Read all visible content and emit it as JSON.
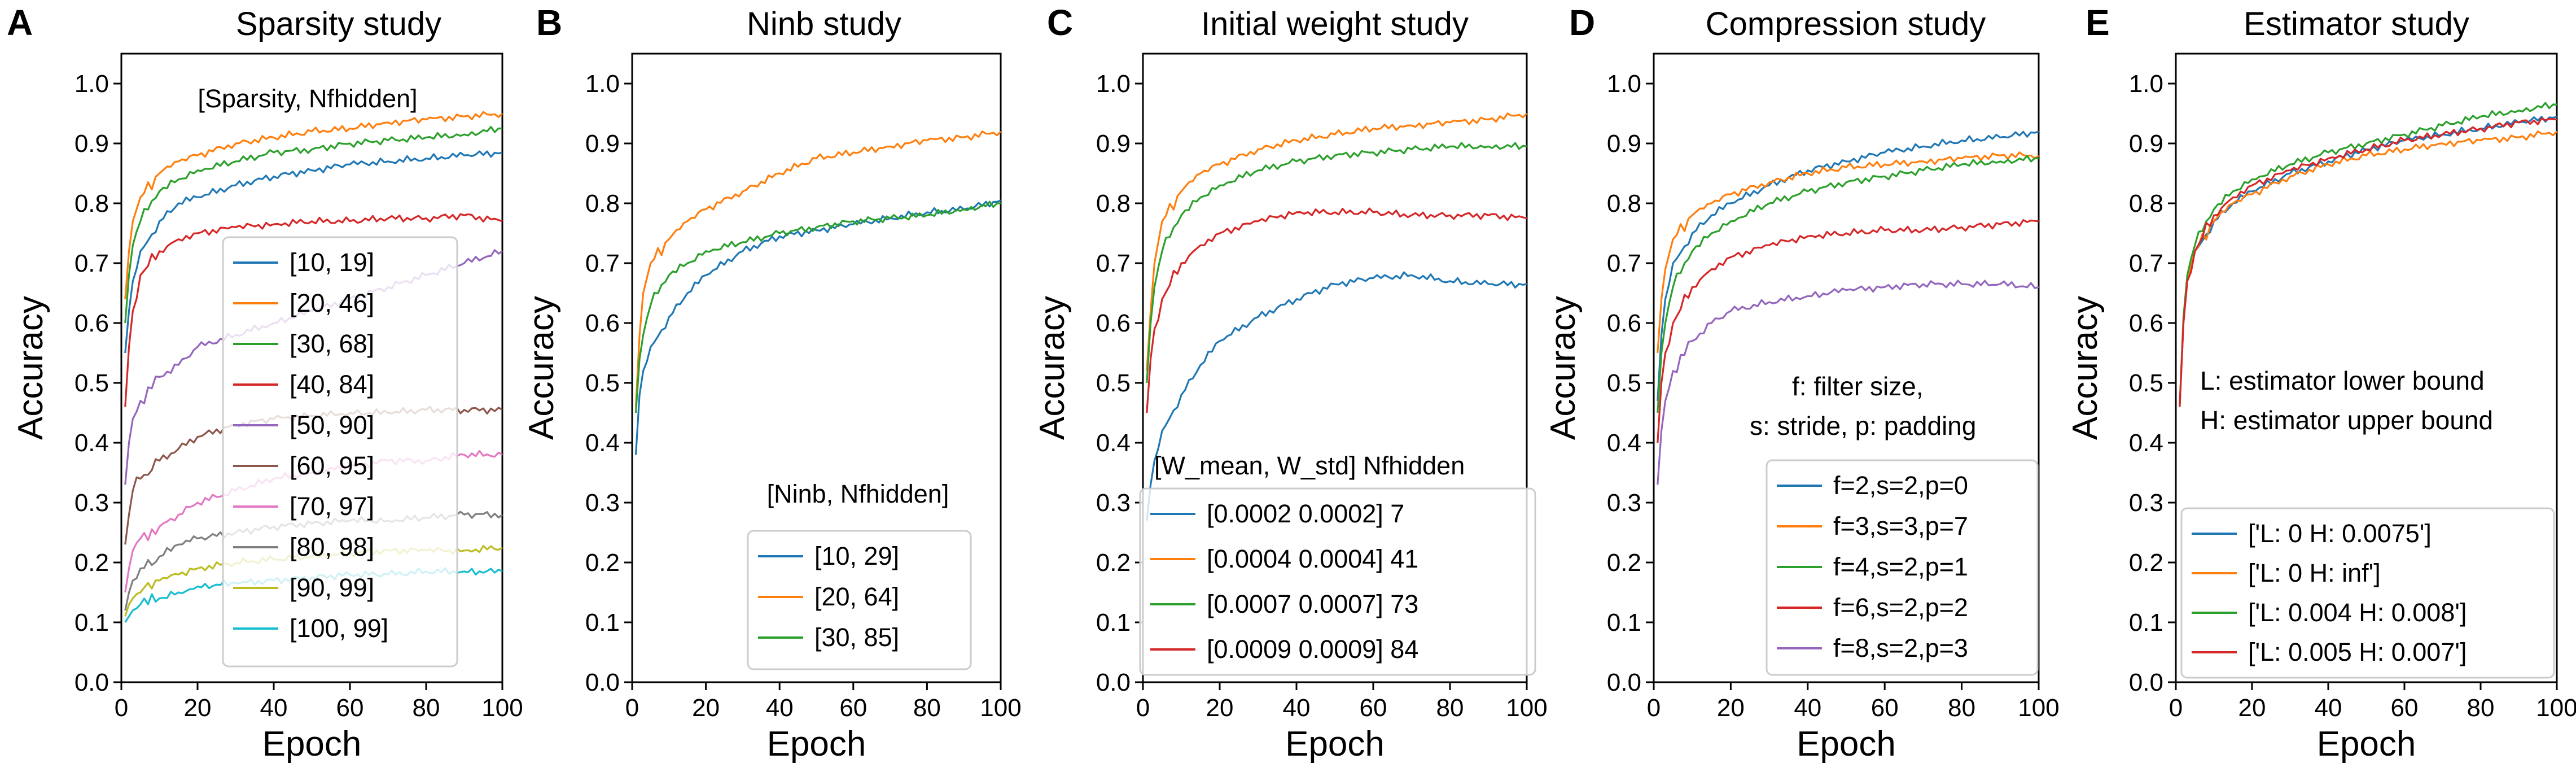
{
  "figure": {
    "palette": [
      "#1f77b4",
      "#ff7f0e",
      "#2ca02c",
      "#d62728",
      "#9467bd",
      "#8c564b",
      "#e377c2",
      "#7f7f7f",
      "#bcbd22",
      "#17becf"
    ]
  },
  "chart_data": [
    {
      "type": "line",
      "letter": "A",
      "title": "Sparsity study",
      "xlabel": "Epoch",
      "ylabel": "Accuracy",
      "xlim": [
        0,
        100
      ],
      "ylim": [
        0,
        1.05
      ],
      "xticks": [
        0,
        20,
        40,
        60,
        80,
        100
      ],
      "yticks": [
        0.0,
        0.1,
        0.2,
        0.3,
        0.4,
        0.5,
        0.6,
        0.7,
        0.8,
        0.9,
        1.0
      ],
      "legend_title": "[Sparsity, Nfhidden]",
      "legend_position": "center-right",
      "x": [
        1,
        2,
        3,
        5,
        10,
        15,
        20,
        30,
        40,
        50,
        60,
        70,
        80,
        90,
        100
      ],
      "series": [
        {
          "name": "[10, 19]",
          "color": "#1f77b4",
          "values": [
            0.55,
            0.62,
            0.67,
            0.72,
            0.77,
            0.8,
            0.81,
            0.83,
            0.845,
            0.855,
            0.865,
            0.87,
            0.875,
            0.88,
            0.885
          ]
        },
        {
          "name": "[20, 46]",
          "color": "#ff7f0e",
          "values": [
            0.64,
            0.72,
            0.77,
            0.81,
            0.85,
            0.87,
            0.88,
            0.9,
            0.91,
            0.92,
            0.925,
            0.935,
            0.94,
            0.945,
            0.95
          ]
        },
        {
          "name": "[30, 68]",
          "color": "#2ca02c",
          "values": [
            0.6,
            0.68,
            0.73,
            0.77,
            0.82,
            0.84,
            0.855,
            0.87,
            0.885,
            0.89,
            0.9,
            0.905,
            0.91,
            0.915,
            0.925
          ]
        },
        {
          "name": "[40, 84]",
          "color": "#d62728",
          "values": [
            0.46,
            0.56,
            0.62,
            0.68,
            0.72,
            0.74,
            0.75,
            0.76,
            0.765,
            0.77,
            0.77,
            0.775,
            0.775,
            0.78,
            0.77
          ]
        },
        {
          "name": "[50, 90]",
          "color": "#9467bd",
          "values": [
            0.33,
            0.4,
            0.44,
            0.47,
            0.51,
            0.53,
            0.56,
            0.58,
            0.6,
            0.62,
            0.64,
            0.66,
            0.68,
            0.7,
            0.72
          ]
        },
        {
          "name": "[60, 95]",
          "color": "#8c564b",
          "values": [
            0.23,
            0.28,
            0.32,
            0.34,
            0.37,
            0.39,
            0.41,
            0.43,
            0.44,
            0.445,
            0.45,
            0.45,
            0.455,
            0.455,
            0.455
          ]
        },
        {
          "name": "[70, 97]",
          "color": "#e377c2",
          "values": [
            0.15,
            0.19,
            0.22,
            0.24,
            0.26,
            0.28,
            0.3,
            0.32,
            0.34,
            0.35,
            0.36,
            0.37,
            0.37,
            0.38,
            0.38
          ]
        },
        {
          "name": "[80, 98]",
          "color": "#7f7f7f",
          "values": [
            0.12,
            0.15,
            0.17,
            0.19,
            0.21,
            0.23,
            0.24,
            0.25,
            0.26,
            0.265,
            0.27,
            0.27,
            0.275,
            0.28,
            0.28
          ]
        },
        {
          "name": "[90, 99]",
          "color": "#bcbd22",
          "values": [
            0.11,
            0.13,
            0.14,
            0.15,
            0.17,
            0.18,
            0.19,
            0.2,
            0.205,
            0.21,
            0.215,
            0.22,
            0.22,
            0.22,
            0.225
          ]
        },
        {
          "name": "[100, 99]",
          "color": "#17becf",
          "values": [
            0.1,
            0.11,
            0.12,
            0.13,
            0.14,
            0.15,
            0.16,
            0.165,
            0.17,
            0.175,
            0.18,
            0.18,
            0.185,
            0.185,
            0.185
          ]
        }
      ]
    },
    {
      "type": "line",
      "letter": "B",
      "title": "Ninb study",
      "xlabel": "Epoch",
      "ylabel": "Accuracy",
      "xlim": [
        0,
        100
      ],
      "ylim": [
        0,
        1.05
      ],
      "xticks": [
        0,
        20,
        40,
        60,
        80,
        100
      ],
      "yticks": [
        0.0,
        0.1,
        0.2,
        0.3,
        0.4,
        0.5,
        0.6,
        0.7,
        0.8,
        0.9,
        1.0
      ],
      "legend_title": "[Ninb, Nfhidden]",
      "legend_position": "lower-right",
      "x": [
        1,
        2,
        3,
        5,
        10,
        15,
        20,
        30,
        40,
        50,
        60,
        70,
        80,
        90,
        100
      ],
      "series": [
        {
          "name": "[10, 29]",
          "color": "#1f77b4",
          "values": [
            0.38,
            0.48,
            0.52,
            0.56,
            0.61,
            0.65,
            0.68,
            0.72,
            0.745,
            0.755,
            0.765,
            0.775,
            0.785,
            0.79,
            0.805
          ]
        },
        {
          "name": "[20, 64]",
          "color": "#ff7f0e",
          "values": [
            0.46,
            0.58,
            0.65,
            0.7,
            0.74,
            0.77,
            0.79,
            0.82,
            0.85,
            0.875,
            0.885,
            0.895,
            0.905,
            0.91,
            0.92
          ]
        },
        {
          "name": "[30, 85]",
          "color": "#2ca02c",
          "values": [
            0.45,
            0.54,
            0.58,
            0.63,
            0.68,
            0.7,
            0.72,
            0.735,
            0.75,
            0.76,
            0.77,
            0.775,
            0.78,
            0.79,
            0.8
          ]
        }
      ]
    },
    {
      "type": "line",
      "letter": "C",
      "title": "Initial weight study",
      "xlabel": "Epoch",
      "ylabel": "Accuracy",
      "xlim": [
        0,
        100
      ],
      "ylim": [
        0,
        1.05
      ],
      "xticks": [
        0,
        20,
        40,
        60,
        80,
        100
      ],
      "yticks": [
        0.0,
        0.1,
        0.2,
        0.3,
        0.4,
        0.5,
        0.6,
        0.7,
        0.8,
        0.9,
        1.0
      ],
      "legend_title": "[W_mean, W_std] Nfhidden",
      "legend_position": "lower-right",
      "x": [
        1,
        2,
        3,
        5,
        10,
        15,
        20,
        30,
        40,
        50,
        60,
        70,
        80,
        90,
        100
      ],
      "series": [
        {
          "name": "[0.0002 0.0002] 7",
          "color": "#1f77b4",
          "values": [
            0.27,
            0.33,
            0.37,
            0.42,
            0.48,
            0.53,
            0.57,
            0.61,
            0.64,
            0.665,
            0.675,
            0.68,
            0.67,
            0.665,
            0.665
          ]
        },
        {
          "name": "[0.0004 0.0004] 41",
          "color": "#ff7f0e",
          "values": [
            0.52,
            0.62,
            0.7,
            0.77,
            0.82,
            0.85,
            0.865,
            0.89,
            0.905,
            0.915,
            0.925,
            0.93,
            0.935,
            0.94,
            0.95
          ]
        },
        {
          "name": "[0.0007 0.0007] 73",
          "color": "#2ca02c",
          "values": [
            0.5,
            0.6,
            0.66,
            0.72,
            0.78,
            0.81,
            0.83,
            0.855,
            0.87,
            0.88,
            0.885,
            0.89,
            0.895,
            0.895,
            0.895
          ]
        },
        {
          "name": "[0.0009 0.0009] 84",
          "color": "#d62728",
          "values": [
            0.45,
            0.54,
            0.59,
            0.64,
            0.7,
            0.73,
            0.75,
            0.77,
            0.785,
            0.785,
            0.785,
            0.78,
            0.78,
            0.78,
            0.775
          ]
        }
      ]
    },
    {
      "type": "line",
      "letter": "D",
      "title": "Compression study",
      "xlabel": "Epoch",
      "ylabel": "Accuracy",
      "xlim": [
        0,
        100
      ],
      "ylim": [
        0,
        1.05
      ],
      "xticks": [
        0,
        20,
        40,
        60,
        80,
        100
      ],
      "yticks": [
        0.0,
        0.1,
        0.2,
        0.3,
        0.4,
        0.5,
        0.6,
        0.7,
        0.8,
        0.9,
        1.0
      ],
      "annotation": [
        "f: filter size,",
        "s: stride, p: padding"
      ],
      "legend_position": "lower-right",
      "x": [
        1,
        2,
        3,
        5,
        10,
        15,
        20,
        30,
        40,
        50,
        60,
        70,
        80,
        90,
        100
      ],
      "series": [
        {
          "name": "f=2,s=2,p=0",
          "color": "#1f77b4",
          "values": [
            0.47,
            0.58,
            0.64,
            0.7,
            0.75,
            0.78,
            0.8,
            0.83,
            0.855,
            0.87,
            0.885,
            0.895,
            0.905,
            0.91,
            0.92
          ]
        },
        {
          "name": "f=3,s=3,p=7",
          "color": "#ff7f0e",
          "values": [
            0.55,
            0.64,
            0.69,
            0.74,
            0.78,
            0.8,
            0.815,
            0.835,
            0.85,
            0.86,
            0.865,
            0.87,
            0.875,
            0.88,
            0.88
          ]
        },
        {
          "name": "f=4,s=2,p=1",
          "color": "#2ca02c",
          "values": [
            0.45,
            0.55,
            0.6,
            0.66,
            0.72,
            0.75,
            0.77,
            0.8,
            0.82,
            0.835,
            0.845,
            0.855,
            0.865,
            0.87,
            0.875
          ]
        },
        {
          "name": "f=6,s=2,p=2",
          "color": "#d62728",
          "values": [
            0.4,
            0.5,
            0.55,
            0.6,
            0.66,
            0.69,
            0.71,
            0.73,
            0.745,
            0.75,
            0.755,
            0.755,
            0.76,
            0.765,
            0.77
          ]
        },
        {
          "name": "f=8,s=2,p=3",
          "color": "#9467bd",
          "values": [
            0.33,
            0.42,
            0.47,
            0.52,
            0.57,
            0.6,
            0.62,
            0.635,
            0.645,
            0.655,
            0.66,
            0.665,
            0.665,
            0.665,
            0.66
          ]
        }
      ]
    },
    {
      "type": "line",
      "letter": "E",
      "title": "Estimator study",
      "xlabel": "Epoch",
      "ylabel": "Accuracy",
      "xlim": [
        0,
        100
      ],
      "ylim": [
        0,
        1.05
      ],
      "xticks": [
        0,
        20,
        40,
        60,
        80,
        100
      ],
      "yticks": [
        0.0,
        0.1,
        0.2,
        0.3,
        0.4,
        0.5,
        0.6,
        0.7,
        0.8,
        0.9,
        1.0
      ],
      "annotation": [
        "L: estimator lower bound",
        "H: estimator upper bound"
      ],
      "legend_position": "lower-right",
      "x": [
        1,
        2,
        3,
        5,
        10,
        15,
        20,
        30,
        40,
        50,
        60,
        70,
        80,
        90,
        100
      ],
      "series": [
        {
          "name": "['L: 0 H: 0.0075']",
          "color": "#1f77b4",
          "values": [
            0.46,
            0.6,
            0.67,
            0.72,
            0.77,
            0.8,
            0.82,
            0.85,
            0.87,
            0.89,
            0.905,
            0.915,
            0.925,
            0.935,
            0.945
          ]
        },
        {
          "name": "['L: 0 H: inf']",
          "color": "#ff7f0e",
          "values": [
            0.46,
            0.6,
            0.67,
            0.72,
            0.77,
            0.8,
            0.815,
            0.845,
            0.865,
            0.88,
            0.89,
            0.9,
            0.905,
            0.91,
            0.92
          ]
        },
        {
          "name": "['L: 0.004 H: 0.008']",
          "color": "#2ca02c",
          "values": [
            0.46,
            0.61,
            0.68,
            0.73,
            0.79,
            0.82,
            0.84,
            0.865,
            0.885,
            0.9,
            0.915,
            0.93,
            0.945,
            0.955,
            0.965
          ]
        },
        {
          "name": "['L: 0.005 H: 0.007']",
          "color": "#d62728",
          "values": [
            0.46,
            0.6,
            0.67,
            0.72,
            0.78,
            0.81,
            0.83,
            0.855,
            0.875,
            0.89,
            0.905,
            0.915,
            0.925,
            0.935,
            0.94
          ]
        }
      ]
    }
  ]
}
